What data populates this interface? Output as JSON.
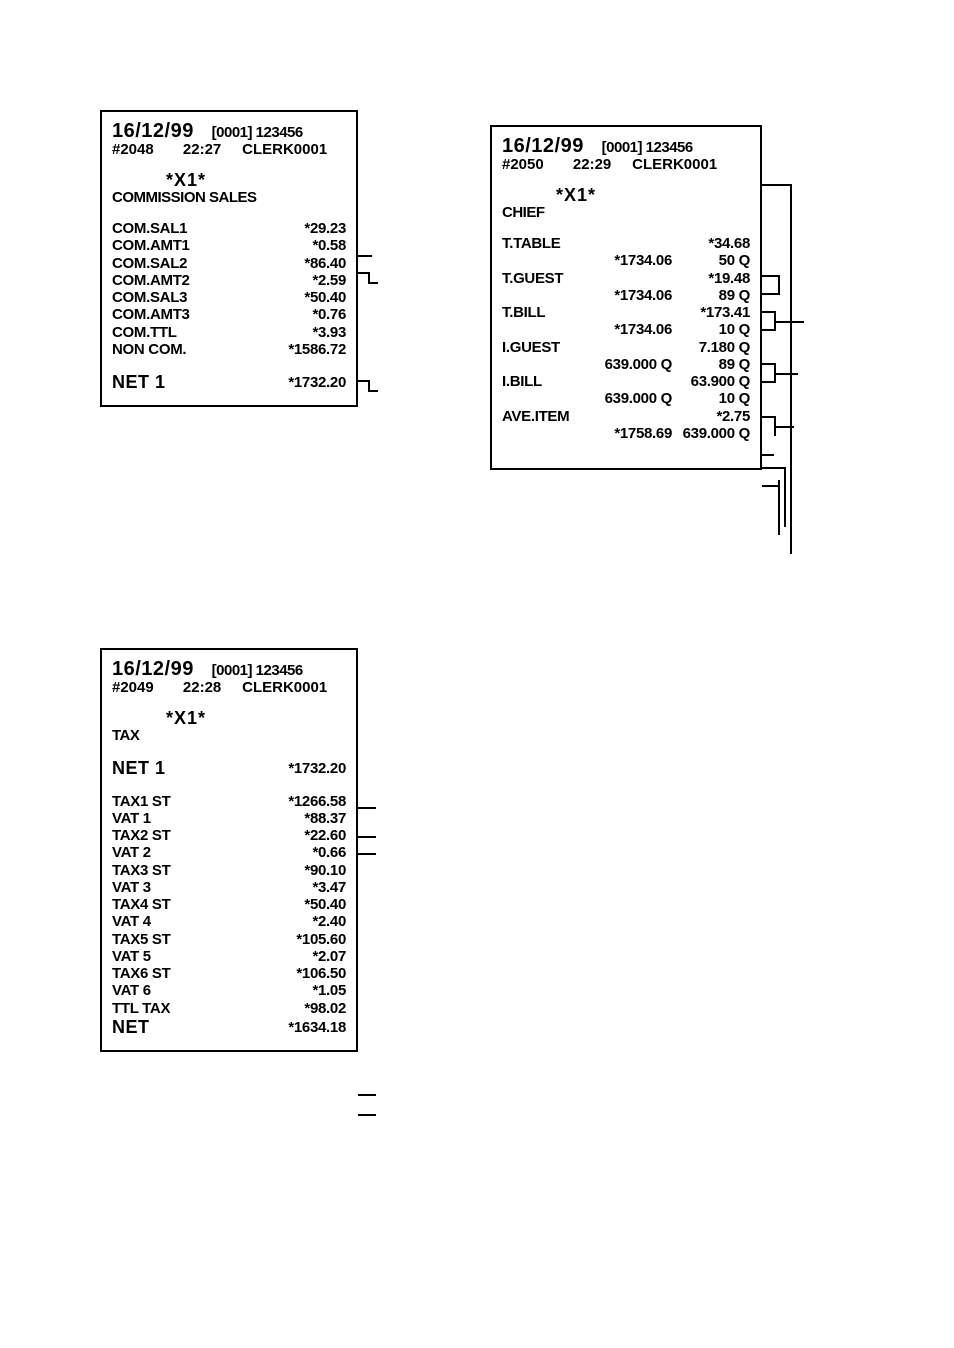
{
  "r1": {
    "date": "16/12/99",
    "id": "[0001] 123456",
    "num": "#2048",
    "time": "22:27",
    "clerk": "CLERK0001",
    "x1": "*X1*",
    "subtitle": "COMMISSION SALES",
    "lines": [
      {
        "l": "COM.SAL1",
        "r": "*29.23"
      },
      {
        "l": "COM.AMT1",
        "r": "*0.58"
      },
      {
        "l": "COM.SAL2",
        "r": "*86.40"
      },
      {
        "l": "COM.AMT2",
        "r": "*2.59"
      },
      {
        "l": "COM.SAL3",
        "r": "*50.40"
      },
      {
        "l": "COM.AMT3",
        "r": "*0.76"
      },
      {
        "l": "COM.TTL",
        "r": "*3.93"
      },
      {
        "l": "NON COM.",
        "r": "*1586.72"
      }
    ],
    "net_l": "NET 1",
    "net_r": "*1732.20"
  },
  "r2": {
    "date": "16/12/99",
    "id": "[0001] 123456",
    "num": "#2049",
    "time": "22:28",
    "clerk": "CLERK0001",
    "x1": "*X1*",
    "subtitle": "TAX",
    "net1_l": "NET 1",
    "net1_r": "*1732.20",
    "lines": [
      {
        "l": "TAX1 ST",
        "r": "*1266.58"
      },
      {
        "l": "VAT 1",
        "r": "*88.37"
      },
      {
        "l": "TAX2 ST",
        "r": "*22.60"
      },
      {
        "l": "VAT 2",
        "r": "*0.66"
      },
      {
        "l": "TAX3 ST",
        "r": "*90.10"
      },
      {
        "l": "VAT 3",
        "r": "*3.47"
      },
      {
        "l": "TAX4 ST",
        "r": "*50.40"
      },
      {
        "l": "VAT 4",
        "r": "*2.40"
      },
      {
        "l": "TAX5 ST",
        "r": "*105.60"
      },
      {
        "l": "VAT 5",
        "r": "*2.07"
      },
      {
        "l": "TAX6 ST",
        "r": "*106.50"
      },
      {
        "l": "VAT 6",
        "r": "*1.05"
      },
      {
        "l": "TTL TAX",
        "r": "*98.02"
      }
    ],
    "net_l": "NET",
    "net_r": "*1634.18"
  },
  "r3": {
    "date": "16/12/99",
    "id": "[0001] 123456",
    "num": "#2050",
    "time": "22:29",
    "clerk": "CLERK0001",
    "x1": "*X1*",
    "subtitle": "CHIEF",
    "rows": [
      {
        "l": "T.TABLE",
        "m": "",
        "r": "*34.68"
      },
      {
        "l": "",
        "m": "*1734.06",
        "r": "50 Q"
      },
      {
        "l": "T.GUEST",
        "m": "",
        "r": "*19.48"
      },
      {
        "l": "",
        "m": "*1734.06",
        "r": "89 Q"
      },
      {
        "l": "T.BILL",
        "m": "",
        "r": "*173.41"
      },
      {
        "l": "",
        "m": "*1734.06",
        "r": "10 Q"
      },
      {
        "l": "I.GUEST",
        "m": "",
        "r": "7.180 Q"
      },
      {
        "l": "",
        "m": "639.000 Q",
        "r": "89 Q"
      },
      {
        "l": "I.BILL",
        "m": "",
        "r": "63.900 Q"
      },
      {
        "l": "",
        "m": "639.000 Q",
        "r": "10 Q"
      },
      {
        "l": "AVE.ITEM",
        "m": "",
        "r": "*2.75"
      },
      {
        "l": "",
        "m": "*1758.69",
        "r": "639.000 Q"
      }
    ]
  }
}
